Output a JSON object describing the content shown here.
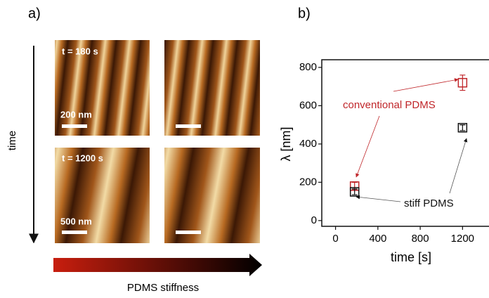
{
  "panel_a": {
    "label": "a)",
    "time_label": "time",
    "image_labels": [
      "t = 180 s",
      "t = 1200 s"
    ],
    "scale_labels": [
      "200 nm",
      "500 nm"
    ],
    "stiffness_label": "PDMS stiffness"
  },
  "chart_data": {
    "type": "scatter",
    "panel_label": "b)",
    "x_label": "time [s]",
    "y_label": "λ [nm]",
    "xlim": [
      -130,
      1450
    ],
    "xticks": [
      0,
      400,
      800,
      1200
    ],
    "ylim": [
      -30,
      840
    ],
    "yticks": [
      0,
      200,
      400,
      600,
      800
    ],
    "series": [
      {
        "name": "conventional PDMS",
        "color": "#c0262a",
        "x": [
          180,
          1200
        ],
        "values": [
          180,
          720
        ],
        "errors": [
          20,
          40
        ]
      },
      {
        "name": "stiff PDMS",
        "color": "#111111",
        "x": [
          180,
          1200
        ],
        "values": [
          150,
          485
        ],
        "errors": [
          15,
          15
        ]
      }
    ]
  }
}
